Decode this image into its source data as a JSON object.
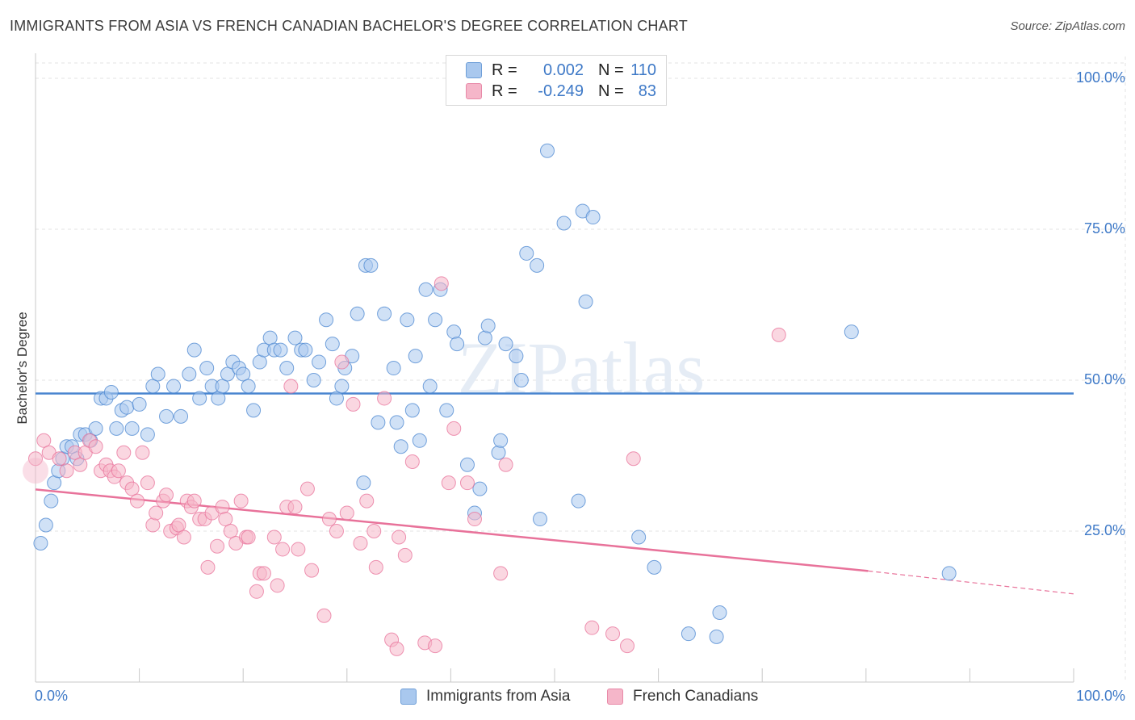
{
  "title": "IMMIGRANTS FROM ASIA VS FRENCH CANADIAN BACHELOR'S DEGREE CORRELATION CHART",
  "source": "Source: ZipAtlas.com",
  "watermark": "ZIPatlas",
  "legend_top": {
    "rows": [
      {
        "r_label": "R =",
        "r_value": "0.002",
        "n_label": "N =",
        "n_value": "110",
        "color": "#a9c8ee"
      },
      {
        "r_label": "R =",
        "r_value": "-0.249",
        "n_label": "N =",
        "n_value": "83",
        "color": "#f5b6c9"
      }
    ]
  },
  "chart_data": {
    "type": "scatter",
    "title": "IMMIGRANTS FROM ASIA VS FRENCH CANADIAN BACHELOR'S DEGREE CORRELATION CHART",
    "xlabel": "",
    "ylabel": "Bachelor's Degree",
    "xlim": [
      0,
      100
    ],
    "ylim": [
      0,
      100
    ],
    "x_tick_labels": [
      "0.0%",
      "100.0%"
    ],
    "y_tick_labels": [
      {
        "value": 100,
        "label": "100.0%"
      },
      {
        "value": 75,
        "label": "75.0%"
      },
      {
        "value": 50,
        "label": "50.0%"
      },
      {
        "value": 25,
        "label": "25.0%"
      }
    ],
    "grid": true,
    "legend_position": "bottom",
    "series": [
      {
        "name": "Immigrants from Asia",
        "color": "#4a86d0",
        "fill": "#a9c8ee",
        "trend": {
          "x": [
            0,
            100
          ],
          "y": [
            47.8,
            47.8
          ]
        },
        "points": [
          [
            0.5,
            23
          ],
          [
            1,
            26
          ],
          [
            1.5,
            30
          ],
          [
            1.8,
            33
          ],
          [
            2.2,
            35
          ],
          [
            2.6,
            37
          ],
          [
            3,
            39
          ],
          [
            3.5,
            39
          ],
          [
            4,
            37
          ],
          [
            4.3,
            41
          ],
          [
            4.8,
            41
          ],
          [
            5.3,
            40
          ],
          [
            5.8,
            42
          ],
          [
            6.3,
            47
          ],
          [
            6.8,
            47
          ],
          [
            7.3,
            48
          ],
          [
            7.8,
            42
          ],
          [
            8.3,
            45
          ],
          [
            8.8,
            45.5
          ],
          [
            9.3,
            42
          ],
          [
            10,
            46
          ],
          [
            10.8,
            41
          ],
          [
            11.3,
            49
          ],
          [
            11.8,
            51
          ],
          [
            12.6,
            44
          ],
          [
            13.3,
            49
          ],
          [
            14,
            44
          ],
          [
            14.8,
            51
          ],
          [
            15.3,
            55
          ],
          [
            15.8,
            47
          ],
          [
            16.5,
            52
          ],
          [
            17,
            49
          ],
          [
            17.6,
            47
          ],
          [
            18,
            49
          ],
          [
            18.5,
            51
          ],
          [
            19,
            53
          ],
          [
            19.6,
            52
          ],
          [
            20,
            51
          ],
          [
            20.5,
            49
          ],
          [
            21,
            45
          ],
          [
            21.6,
            53
          ],
          [
            22,
            55
          ],
          [
            22.6,
            57
          ],
          [
            23,
            55
          ],
          [
            23.6,
            55
          ],
          [
            24.2,
            52
          ],
          [
            25,
            57
          ],
          [
            25.6,
            55
          ],
          [
            26,
            55
          ],
          [
            26.8,
            50
          ],
          [
            27.3,
            53
          ],
          [
            28,
            60
          ],
          [
            28.6,
            56
          ],
          [
            29,
            47
          ],
          [
            29.5,
            49
          ],
          [
            29.8,
            52
          ],
          [
            30.5,
            54
          ],
          [
            31,
            61
          ],
          [
            31.6,
            33
          ],
          [
            31.8,
            69
          ],
          [
            32.3,
            69
          ],
          [
            33,
            43
          ],
          [
            33.6,
            61
          ],
          [
            34.5,
            52
          ],
          [
            34.8,
            43
          ],
          [
            35.2,
            39
          ],
          [
            35.8,
            60
          ],
          [
            36.3,
            45
          ],
          [
            36.6,
            54
          ],
          [
            37,
            40
          ],
          [
            37.6,
            65
          ],
          [
            38,
            49
          ],
          [
            38.5,
            60
          ],
          [
            39,
            65
          ],
          [
            39.6,
            45
          ],
          [
            40.3,
            58
          ],
          [
            40.6,
            56
          ],
          [
            41.6,
            36
          ],
          [
            42.3,
            28
          ],
          [
            42.8,
            32
          ],
          [
            43.3,
            57
          ],
          [
            43.6,
            59
          ],
          [
            44.6,
            38
          ],
          [
            44.8,
            40
          ],
          [
            45.3,
            56
          ],
          [
            46.3,
            54
          ],
          [
            46.8,
            50
          ],
          [
            47.3,
            71
          ],
          [
            48.3,
            69
          ],
          [
            48.6,
            27
          ],
          [
            49.3,
            88
          ],
          [
            50.9,
            76
          ],
          [
            52.3,
            30
          ],
          [
            52.7,
            78
          ],
          [
            53,
            63
          ],
          [
            53.7,
            77
          ],
          [
            58.1,
            24
          ],
          [
            59.6,
            19
          ],
          [
            62.9,
            8
          ],
          [
            65.6,
            7.5
          ],
          [
            65.9,
            11.5
          ],
          [
            78.6,
            58
          ],
          [
            88,
            18
          ]
        ]
      },
      {
        "name": "French Canadians",
        "color": "#e8729a",
        "fill": "#f5b6c9",
        "trend": {
          "x": [
            0,
            80.2
          ],
          "y": [
            31.9,
            18.4
          ]
        },
        "trend_dashed": {
          "x": [
            80.2,
            100
          ],
          "y": [
            18.4,
            14.6
          ]
        },
        "points": [
          [
            0,
            37
          ],
          [
            0.8,
            40
          ],
          [
            1.3,
            38
          ],
          [
            2.3,
            37
          ],
          [
            3,
            35
          ],
          [
            3.8,
            38
          ],
          [
            4.3,
            36
          ],
          [
            4.8,
            38
          ],
          [
            5.2,
            40
          ],
          [
            5.8,
            39
          ],
          [
            6.3,
            35
          ],
          [
            6.8,
            36
          ],
          [
            7.2,
            35
          ],
          [
            7.6,
            34
          ],
          [
            8,
            35
          ],
          [
            8.5,
            38
          ],
          [
            8.8,
            33
          ],
          [
            9.3,
            32
          ],
          [
            9.8,
            30
          ],
          [
            10.3,
            38
          ],
          [
            10.8,
            33
          ],
          [
            11.3,
            26
          ],
          [
            11.6,
            28
          ],
          [
            12.3,
            30
          ],
          [
            12.6,
            31
          ],
          [
            13,
            25
          ],
          [
            13.6,
            25.5
          ],
          [
            13.8,
            26
          ],
          [
            14.3,
            24
          ],
          [
            14.6,
            30
          ],
          [
            15,
            29
          ],
          [
            15.3,
            30
          ],
          [
            15.8,
            27
          ],
          [
            16.3,
            27
          ],
          [
            16.6,
            19
          ],
          [
            17,
            28
          ],
          [
            17.5,
            22.5
          ],
          [
            18,
            29
          ],
          [
            18.3,
            27
          ],
          [
            18.8,
            25
          ],
          [
            19.3,
            23
          ],
          [
            19.8,
            30
          ],
          [
            20.3,
            24
          ],
          [
            20.5,
            24
          ],
          [
            21.3,
            15
          ],
          [
            21.6,
            18
          ],
          [
            22,
            18
          ],
          [
            23,
            24
          ],
          [
            23.3,
            16
          ],
          [
            23.8,
            22
          ],
          [
            24.2,
            29
          ],
          [
            24.6,
            49
          ],
          [
            25,
            29
          ],
          [
            25.3,
            22
          ],
          [
            26.2,
            32
          ],
          [
            26.6,
            18.5
          ],
          [
            27.8,
            11
          ],
          [
            28.3,
            27
          ],
          [
            29,
            25
          ],
          [
            29.5,
            53
          ],
          [
            30,
            28
          ],
          [
            30.6,
            46
          ],
          [
            31.3,
            23
          ],
          [
            31.9,
            30
          ],
          [
            32.6,
            25
          ],
          [
            32.8,
            19
          ],
          [
            33.6,
            47
          ],
          [
            34.3,
            7
          ],
          [
            34.8,
            5.5
          ],
          [
            35,
            24
          ],
          [
            35.6,
            21
          ],
          [
            36.3,
            36.5
          ],
          [
            37.5,
            6.5
          ],
          [
            38.5,
            6
          ],
          [
            39.1,
            66
          ],
          [
            39.8,
            33
          ],
          [
            40.3,
            42
          ],
          [
            41.6,
            33
          ],
          [
            42.3,
            27
          ],
          [
            44.8,
            18
          ],
          [
            45.3,
            36
          ],
          [
            53.6,
            9
          ],
          [
            55.6,
            8
          ],
          [
            57,
            6
          ],
          [
            57.6,
            37
          ],
          [
            71.6,
            57.5
          ]
        ]
      }
    ]
  },
  "bottom_legend": [
    {
      "label": "Immigrants from Asia",
      "color": "#a9c8ee"
    },
    {
      "label": "French Canadians",
      "color": "#f5b6c9"
    }
  ]
}
